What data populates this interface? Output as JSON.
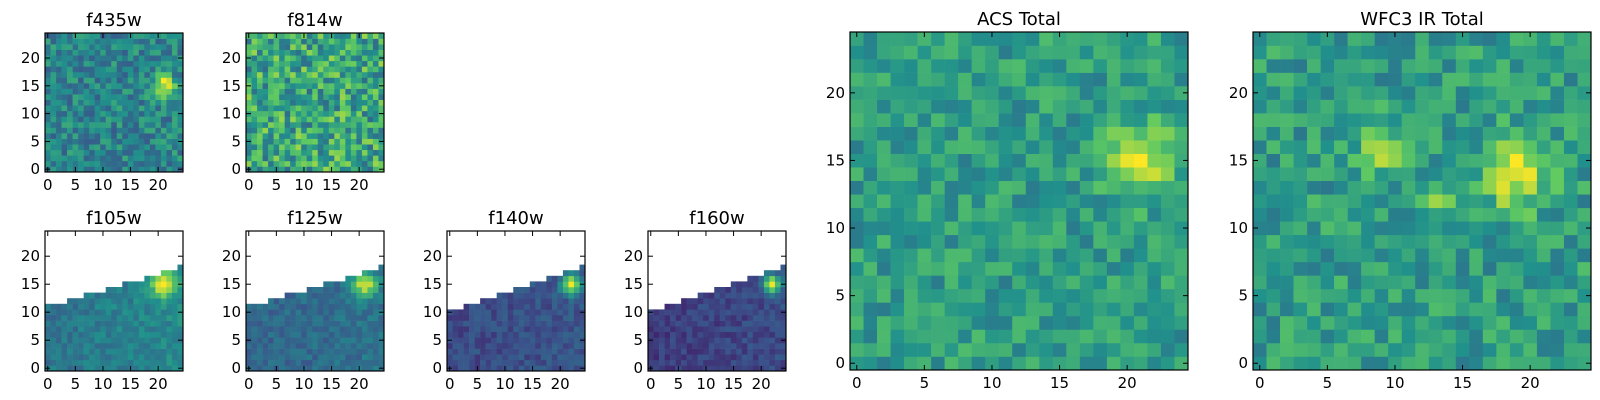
{
  "chart_data": [
    {
      "type": "heatmap",
      "title": "f435w",
      "size": 25,
      "xticks": [
        0,
        5,
        10,
        15,
        20
      ],
      "yticks": [
        0,
        5,
        10,
        15,
        20
      ],
      "map": {
        "base": 0.45,
        "noise": 0.16,
        "blobs": [
          {
            "x": 21,
            "y": 15,
            "amp": 0.5,
            "sigma": 1.4
          }
        ],
        "slope": 0,
        "cutoff": null
      }
    },
    {
      "type": "heatmap",
      "title": "f814w",
      "size": 25,
      "xticks": [
        0,
        5,
        10,
        15,
        20
      ],
      "yticks": [
        0,
        5,
        10,
        15,
        20
      ],
      "map": {
        "base": 0.6,
        "noise": 0.25,
        "blobs": [],
        "slope": 0,
        "cutoff": null
      }
    },
    {
      "type": "heatmap",
      "title": "f105w",
      "size": 25,
      "xticks": [
        0,
        5,
        10,
        15,
        20
      ],
      "yticks": [
        0,
        5,
        10,
        15,
        20
      ],
      "map": {
        "base": 0.38,
        "noise": 0.08,
        "blobs": [
          {
            "x": 21,
            "y": 15,
            "amp": 0.55,
            "sigma": 1.6
          }
        ],
        "slope": 0.1,
        "cutoff": {
          "x0": 0,
          "y0": 11,
          "x1": 24,
          "y1": 18
        }
      }
    },
    {
      "type": "heatmap",
      "title": "f125w",
      "size": 25,
      "xticks": [
        0,
        5,
        10,
        15,
        20
      ],
      "yticks": [
        0,
        5,
        10,
        15,
        20
      ],
      "map": {
        "base": 0.32,
        "noise": 0.08,
        "blobs": [
          {
            "x": 21,
            "y": 15,
            "amp": 0.6,
            "sigma": 1.5
          }
        ],
        "slope": 0.06,
        "cutoff": {
          "x0": 0,
          "y0": 11,
          "x1": 24,
          "y1": 18
        }
      }
    },
    {
      "type": "heatmap",
      "title": "f140w",
      "size": 25,
      "xticks": [
        0,
        5,
        10,
        15,
        20
      ],
      "yticks": [
        0,
        5,
        10,
        15,
        20
      ],
      "map": {
        "base": 0.22,
        "noise": 0.07,
        "blobs": [
          {
            "x": 22,
            "y": 15,
            "amp": 0.65,
            "sigma": 1.3
          }
        ],
        "slope": 0.05,
        "cutoff": {
          "x0": 0,
          "y0": 10,
          "x1": 24,
          "y1": 18
        }
      }
    },
    {
      "type": "heatmap",
      "title": "f160w",
      "size": 25,
      "xticks": [
        0,
        5,
        10,
        15,
        20
      ],
      "yticks": [
        0,
        5,
        10,
        15,
        20
      ],
      "map": {
        "base": 0.18,
        "noise": 0.07,
        "blobs": [
          {
            "x": 22,
            "y": 15,
            "amp": 0.7,
            "sigma": 1.2
          }
        ],
        "slope": 0.05,
        "cutoff": {
          "x0": 0,
          "y0": 10,
          "x1": 24,
          "y1": 18
        }
      }
    },
    {
      "type": "heatmap",
      "title": "ACS Total",
      "size": 25,
      "xticks": [
        0,
        5,
        10,
        15,
        20
      ],
      "yticks": [
        0,
        5,
        10,
        15,
        20
      ],
      "map": {
        "base": 0.55,
        "noise": 0.14,
        "blobs": [
          {
            "x": 21,
            "y": 15,
            "amp": 0.45,
            "sigma": 1.7
          }
        ],
        "slope": 0,
        "cutoff": null
      }
    },
    {
      "type": "heatmap",
      "title": "WFC3 IR Total",
      "size": 25,
      "xticks": [
        0,
        5,
        10,
        15,
        20
      ],
      "yticks": [
        0,
        5,
        10,
        15,
        20
      ],
      "map": {
        "base": 0.55,
        "noise": 0.15,
        "blobs": [
          {
            "x": 19,
            "y": 14,
            "amp": 0.45,
            "sigma": 1.7
          },
          {
            "x": 9,
            "y": 16,
            "amp": 0.3,
            "sigma": 1.2
          },
          {
            "x": 13,
            "y": 12,
            "amp": 0.25,
            "sigma": 1.0
          }
        ],
        "slope": 0,
        "cutoff": null
      }
    }
  ],
  "colormap": [
    "#440154",
    "#3b528b",
    "#21918c",
    "#5ec962",
    "#fde725"
  ]
}
